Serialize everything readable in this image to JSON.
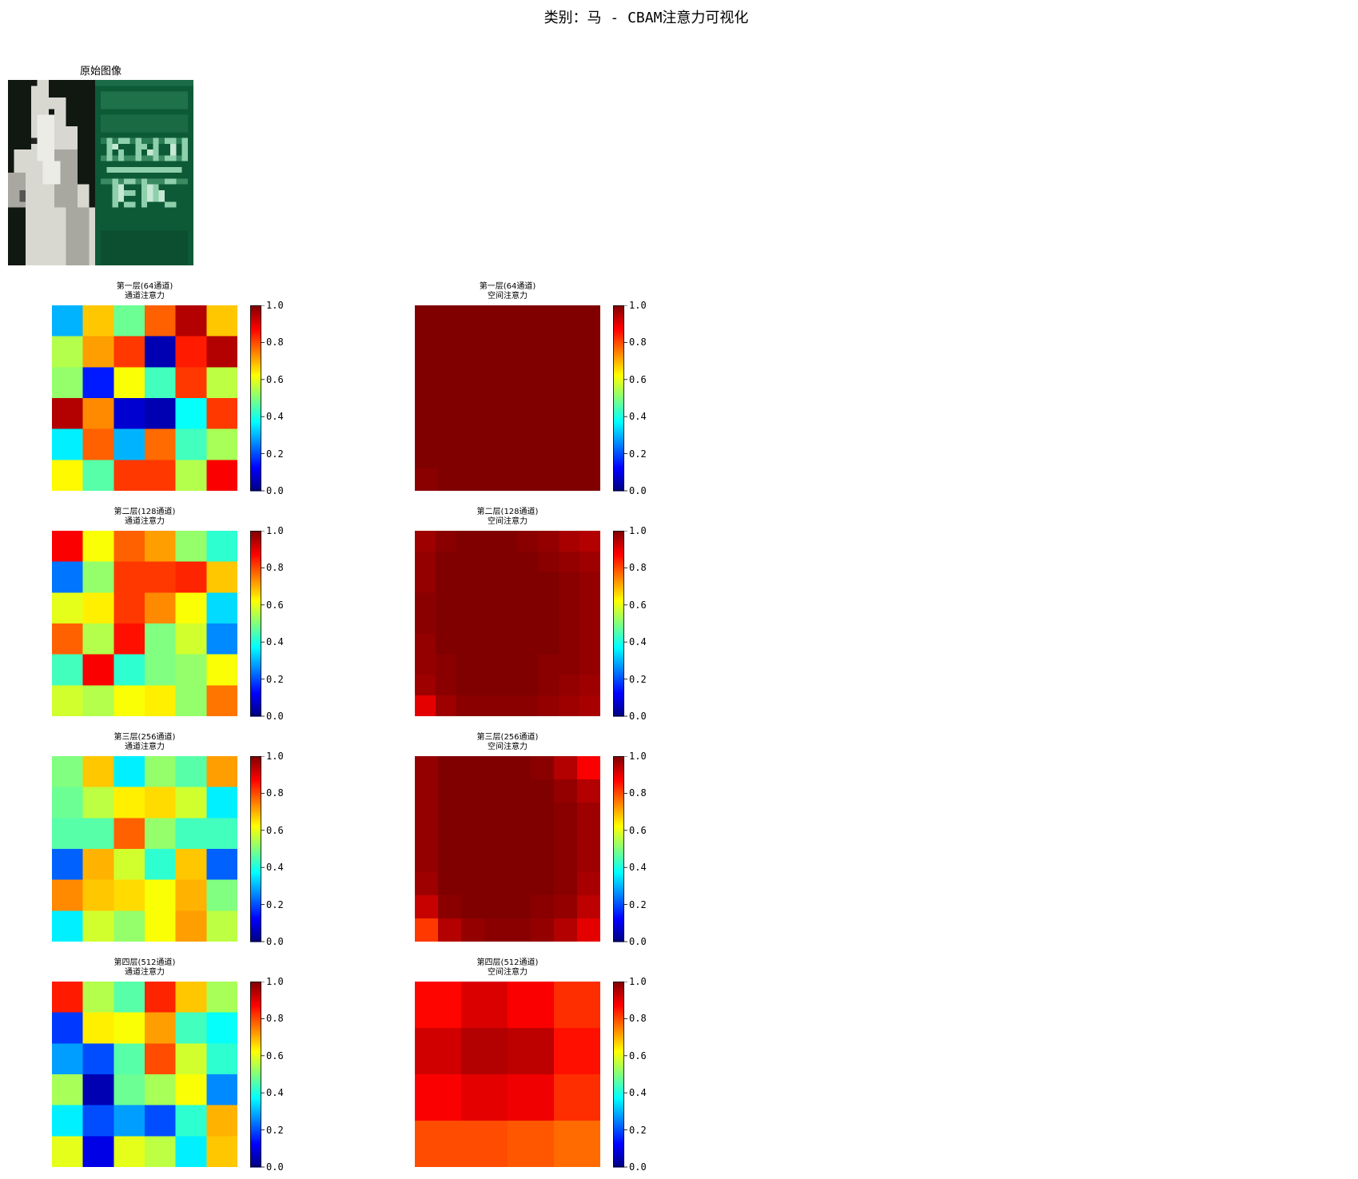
{
  "figure": {
    "title": "类别：马 - CBAM注意力可视化"
  },
  "original": {
    "title": "原始图像"
  },
  "chart_data": [
    {
      "type": "heatmap",
      "title": "第一层(64通道)\n通道注意力",
      "clim": [
        0,
        1
      ],
      "colormap": "jet",
      "colorbar_ticks": [
        "0.0",
        "0.2",
        "0.4",
        "0.6",
        "0.8",
        "1.0"
      ],
      "values": [
        [
          0.3,
          0.68,
          0.48,
          0.78,
          0.95,
          0.68
        ],
        [
          0.55,
          0.72,
          0.82,
          0.05,
          0.85,
          0.95
        ],
        [
          0.52,
          0.15,
          0.62,
          0.44,
          0.82,
          0.56
        ],
        [
          0.95,
          0.74,
          0.08,
          0.05,
          0.38,
          0.82
        ],
        [
          0.36,
          0.78,
          0.3,
          0.77,
          0.44,
          0.54
        ],
        [
          0.63,
          0.46,
          0.82,
          0.82,
          0.55,
          0.88
        ]
      ]
    },
    {
      "type": "heatmap",
      "title": "第一层(64通道)\n空间注意力",
      "clim": [
        0,
        1
      ],
      "colormap": "jet",
      "colorbar_ticks": [
        "0.0",
        "0.2",
        "0.4",
        "0.6",
        "0.8",
        "1.0"
      ],
      "values": [
        [
          1.0,
          1.0,
          1.0,
          1.0,
          1.0,
          1.0,
          1.0,
          1.0
        ],
        [
          1.0,
          1.0,
          1.0,
          1.0,
          1.0,
          1.0,
          1.0,
          1.0
        ],
        [
          1.0,
          1.0,
          1.0,
          1.0,
          1.0,
          1.0,
          1.0,
          1.0
        ],
        [
          1.0,
          1.0,
          1.0,
          1.0,
          1.0,
          1.0,
          1.0,
          1.0
        ],
        [
          1.0,
          1.0,
          1.0,
          1.0,
          1.0,
          1.0,
          1.0,
          1.0
        ],
        [
          1.0,
          1.0,
          1.0,
          1.0,
          1.0,
          1.0,
          1.0,
          1.0
        ],
        [
          1.0,
          1.0,
          1.0,
          1.0,
          1.0,
          1.0,
          1.0,
          1.0
        ],
        [
          0.99,
          1.0,
          1.0,
          1.0,
          1.0,
          1.0,
          1.0,
          1.0
        ]
      ]
    },
    {
      "type": "heatmap",
      "title": "第二层(128通道)\n通道注意力",
      "clim": [
        0,
        1
      ],
      "colormap": "jet",
      "colorbar_ticks": [
        "0.0",
        "0.2",
        "0.4",
        "0.6",
        "0.8",
        "1.0"
      ],
      "values": [
        [
          0.88,
          0.62,
          0.78,
          0.72,
          0.52,
          0.42
        ],
        [
          0.24,
          0.52,
          0.82,
          0.82,
          0.84,
          0.68
        ],
        [
          0.6,
          0.64,
          0.82,
          0.74,
          0.62,
          0.34
        ],
        [
          0.78,
          0.55,
          0.86,
          0.5,
          0.58,
          0.26
        ],
        [
          0.44,
          0.88,
          0.42,
          0.5,
          0.52,
          0.62
        ],
        [
          0.58,
          0.55,
          0.62,
          0.64,
          0.52,
          0.76
        ]
      ]
    },
    {
      "type": "heatmap",
      "title": "第二层(128通道)\n空间注意力",
      "clim": [
        0,
        1
      ],
      "colormap": "jet",
      "colorbar_ticks": [
        "0.0",
        "0.2",
        "0.4",
        "0.6",
        "0.8",
        "1.0"
      ],
      "values": [
        [
          0.97,
          0.99,
          1.0,
          1.0,
          1.0,
          0.99,
          0.98,
          0.96,
          0.95
        ],
        [
          0.98,
          1.0,
          1.0,
          1.0,
          1.0,
          1.0,
          0.99,
          0.98,
          0.97
        ],
        [
          0.98,
          1.0,
          1.0,
          1.0,
          1.0,
          1.0,
          1.0,
          0.99,
          0.98
        ],
        [
          0.99,
          1.0,
          1.0,
          1.0,
          1.0,
          1.0,
          1.0,
          0.99,
          0.98
        ],
        [
          0.99,
          1.0,
          1.0,
          1.0,
          1.0,
          1.0,
          1.0,
          0.99,
          0.98
        ],
        [
          0.98,
          1.0,
          1.0,
          1.0,
          1.0,
          1.0,
          1.0,
          0.99,
          0.98
        ],
        [
          0.98,
          0.99,
          1.0,
          1.0,
          1.0,
          1.0,
          0.99,
          0.99,
          0.98
        ],
        [
          0.97,
          0.99,
          1.0,
          1.0,
          1.0,
          1.0,
          0.99,
          0.98,
          0.97
        ],
        [
          0.9,
          0.97,
          0.99,
          0.99,
          0.99,
          0.99,
          0.98,
          0.97,
          0.96
        ]
      ]
    },
    {
      "type": "heatmap",
      "title": "第三层(256通道)\n通道注意力",
      "clim": [
        0,
        1
      ],
      "colormap": "jet",
      "colorbar_ticks": [
        "0.0",
        "0.2",
        "0.4",
        "0.6",
        "0.8",
        "1.0"
      ],
      "values": [
        [
          0.5,
          0.68,
          0.36,
          0.52,
          0.46,
          0.72
        ],
        [
          0.48,
          0.56,
          0.64,
          0.66,
          0.58,
          0.36
        ],
        [
          0.46,
          0.46,
          0.78,
          0.52,
          0.44,
          0.44
        ],
        [
          0.22,
          0.7,
          0.58,
          0.42,
          0.68,
          0.22
        ],
        [
          0.74,
          0.68,
          0.66,
          0.62,
          0.7,
          0.5
        ],
        [
          0.36,
          0.58,
          0.52,
          0.62,
          0.72,
          0.56
        ]
      ]
    },
    {
      "type": "heatmap",
      "title": "第三层(256通道)\n空间注意力",
      "clim": [
        0,
        1
      ],
      "colormap": "jet",
      "colorbar_ticks": [
        "0.0",
        "0.2",
        "0.4",
        "0.6",
        "0.8",
        "1.0"
      ],
      "values": [
        [
          0.98,
          1.0,
          1.0,
          1.0,
          1.0,
          0.99,
          0.95,
          0.88
        ],
        [
          0.98,
          1.0,
          1.0,
          1.0,
          1.0,
          1.0,
          0.98,
          0.95
        ],
        [
          0.98,
          1.0,
          1.0,
          1.0,
          1.0,
          1.0,
          0.99,
          0.97
        ],
        [
          0.98,
          1.0,
          1.0,
          1.0,
          1.0,
          1.0,
          0.99,
          0.97
        ],
        [
          0.98,
          1.0,
          1.0,
          1.0,
          1.0,
          1.0,
          0.99,
          0.97
        ],
        [
          0.97,
          1.0,
          1.0,
          1.0,
          1.0,
          1.0,
          0.99,
          0.96
        ],
        [
          0.93,
          0.99,
          1.0,
          1.0,
          1.0,
          0.99,
          0.98,
          0.94
        ],
        [
          0.82,
          0.95,
          0.98,
          0.99,
          0.99,
          0.98,
          0.95,
          0.9
        ]
      ]
    },
    {
      "type": "heatmap",
      "title": "第四层(512通道)\n通道注意力",
      "clim": [
        0,
        1
      ],
      "colormap": "jet",
      "colorbar_ticks": [
        "0.0",
        "0.2",
        "0.4",
        "0.6",
        "0.8",
        "1.0"
      ],
      "values": [
        [
          0.85,
          0.55,
          0.46,
          0.84,
          0.68,
          0.54
        ],
        [
          0.18,
          0.64,
          0.62,
          0.72,
          0.44,
          0.38
        ],
        [
          0.28,
          0.2,
          0.46,
          0.8,
          0.58,
          0.42
        ],
        [
          0.54,
          0.05,
          0.48,
          0.54,
          0.62,
          0.26
        ],
        [
          0.36,
          0.2,
          0.28,
          0.2,
          0.42,
          0.7
        ],
        [
          0.6,
          0.1,
          0.6,
          0.56,
          0.36,
          0.68
        ]
      ]
    },
    {
      "type": "heatmap",
      "title": "第四层(512通道)\n空间注意力",
      "clim": [
        0,
        1
      ],
      "colormap": "jet",
      "colorbar_ticks": [
        "0.0",
        "0.2",
        "0.4",
        "0.6",
        "0.8",
        "1.0"
      ],
      "values": [
        [
          0.87,
          0.91,
          0.88,
          0.83
        ],
        [
          0.92,
          0.95,
          0.94,
          0.86
        ],
        [
          0.88,
          0.9,
          0.89,
          0.83
        ],
        [
          0.8,
          0.8,
          0.79,
          0.77
        ]
      ]
    }
  ]
}
